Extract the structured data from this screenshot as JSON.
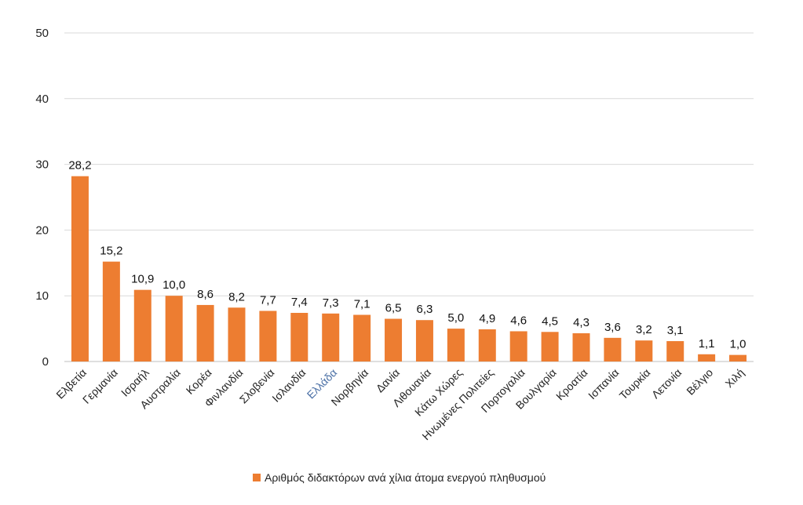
{
  "chart_data": {
    "type": "bar",
    "categories": [
      "Ελβετία",
      "Γερμανία",
      "Ισραήλ",
      "Αυστραλία",
      "Κορέα",
      "Φινλανδία",
      "Σλοβενία",
      "Ισλανδία",
      "Ελλάδα",
      "Νορβηγία",
      "Δανία",
      "Λιθουανία",
      "Κάτω Χώρες",
      "Ηνωμένες Πολιτείες",
      "Πορτογαλία",
      "Βουλγαρία",
      "Κροατία",
      "Ισπανία",
      "Τουρκία",
      "Λετονία",
      "Βέλγιο",
      "Χιλή"
    ],
    "series": [
      {
        "name": "Αριθμός διδακτόρων ανά χίλια άτομα ενεργού πληθυσμού",
        "values": [
          28.2,
          15.2,
          10.9,
          10.0,
          8.6,
          8.2,
          7.7,
          7.4,
          7.3,
          7.1,
          6.5,
          6.3,
          5.0,
          4.9,
          4.6,
          4.5,
          4.3,
          3.6,
          3.2,
          3.1,
          1.1,
          1.0
        ],
        "labels": [
          "28,2",
          "15,2",
          "10,9",
          "10,0",
          "8,6",
          "8,2",
          "7,7",
          "7,4",
          "7,3",
          "7,1",
          "6,5",
          "6,3",
          "5,0",
          "4,9",
          "4,6",
          "4,5",
          "4,3",
          "3,6",
          "3,2",
          "3,1",
          "1,1",
          "1,0"
        ]
      }
    ],
    "highlight_category": "Ελλάδα",
    "ylim": [
      0,
      50
    ],
    "yticks": [
      0,
      10,
      20,
      30,
      40,
      50
    ],
    "grid": true,
    "legend_position": "bottom-center",
    "title": "",
    "xlabel": "",
    "ylabel": "",
    "colors": {
      "bar": "#ed7d31",
      "highlight_label": "#4a6fa5",
      "grid": "#d9d9d9"
    }
  }
}
